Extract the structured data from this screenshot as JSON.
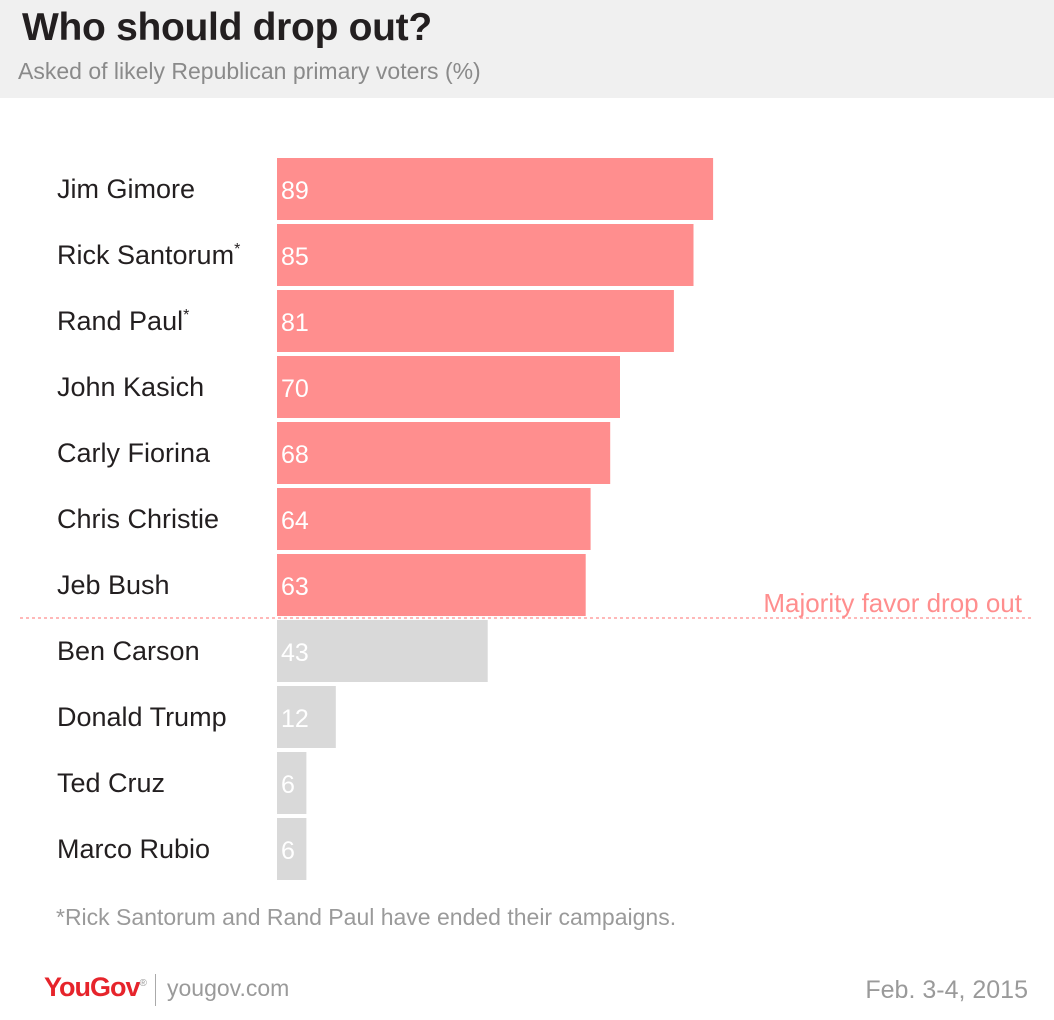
{
  "title": "Who should drop out?",
  "subtitle": "Asked of likely Republican primary voters (%)",
  "footnote": "*Rick Santorum and Rand Paul have ended their campaigns.",
  "brand": "YouGov",
  "brand_mark": "®",
  "site": "yougov.com",
  "date": "Feb. 3-4, 2015",
  "colors": {
    "majority": "#ff8e8e",
    "minority": "#d9d9d9",
    "annotation": "#ff8e8e"
  },
  "chart_data": {
    "type": "bar",
    "orientation": "horizontal",
    "categories": [
      "Jim Gimore",
      "Rick Santorum",
      "Rand Paul",
      "John Kasich",
      "Carly Fiorina",
      "Chris Christie",
      "Jeb Bush",
      "Ben Carson",
      "Donald Trump",
      "Ted Cruz",
      "Marco Rubio"
    ],
    "category_marks": [
      "",
      "*",
      "*",
      "",
      "",
      "",
      "",
      "",
      "",
      "",
      ""
    ],
    "values": [
      89,
      85,
      81,
      70,
      68,
      64,
      63,
      43,
      12,
      6,
      6
    ],
    "highlight_count": 7,
    "annotation": "Majority favor drop out",
    "data_labels": true,
    "grid": false
  }
}
